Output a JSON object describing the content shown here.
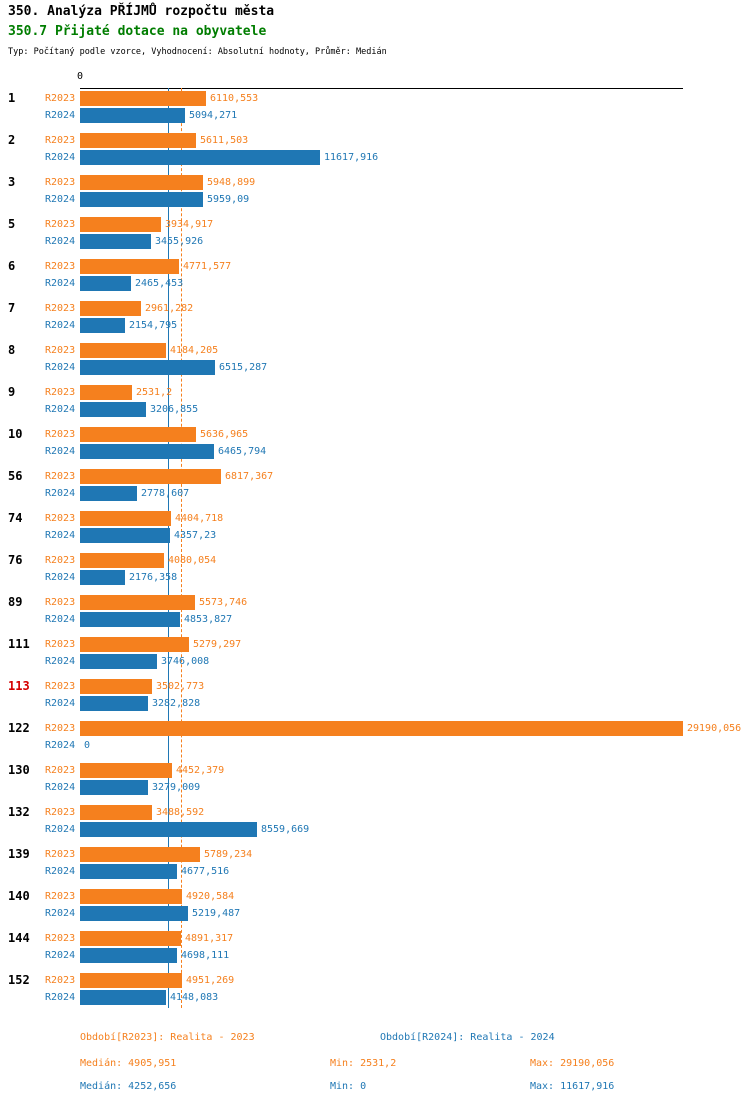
{
  "title": "350. Analýza PŘÍJMŮ rozpočtu města",
  "subtitle": "350.7 Přijaté dotace na obyvatele",
  "meta": "Typ: Počítaný podle vzorce, Vyhodnocení: Absolutní hodnoty, Průměr: Medián",
  "axis": {
    "zero_label": "0"
  },
  "colors": {
    "r2023": "#F5801E",
    "r2024": "#1F77B4",
    "highlight_row": "#D40000",
    "subtitle": "#007D00"
  },
  "chart_data": {
    "type": "bar",
    "orientation": "horizontal",
    "title": "350. Analýza PŘÍJMŮ rozpočtu města",
    "subtitle": "350.7 Přijaté dotace na obyvatele",
    "xlim": [
      0,
      29190.056
    ],
    "xticks": [
      "0"
    ],
    "grid": false,
    "legend_position": "bottom",
    "categories": [
      "1",
      "2",
      "3",
      "5",
      "6",
      "7",
      "8",
      "9",
      "10",
      "56",
      "74",
      "76",
      "89",
      "111",
      "113",
      "122",
      "130",
      "132",
      "139",
      "140",
      "144",
      "152"
    ],
    "highlighted_category": "113",
    "series": [
      {
        "name": "R2023",
        "color": "#F5801E",
        "values": [
          6110.553,
          5611.503,
          5948.899,
          3934.917,
          4771.577,
          2961.282,
          4184.205,
          2531.2,
          5636.965,
          6817.367,
          4404.718,
          4080.054,
          5573.746,
          5279.297,
          3502.773,
          29190.056,
          4452.379,
          3488.592,
          5789.234,
          4920.584,
          4891.317,
          4951.269
        ],
        "labels": [
          "6110,553",
          "5611,503",
          "5948,899",
          "3934,917",
          "4771,577",
          "2961,282",
          "4184,205",
          "2531,2",
          "5636,965",
          "6817,367",
          "4404,718",
          "4080,054",
          "5573,746",
          "5279,297",
          "3502,773",
          "29190,056",
          "4452,379",
          "3488,592",
          "5789,234",
          "4920,584",
          "4891,317",
          "4951,269"
        ]
      },
      {
        "name": "R2024",
        "color": "#1F77B4",
        "values": [
          5094.271,
          11617.916,
          5959.09,
          3455.926,
          2465.453,
          2154.795,
          6515.287,
          3206.855,
          6465.794,
          2778.607,
          4357.23,
          2176.358,
          4853.827,
          3746.008,
          3282.828,
          0,
          3279.009,
          8559.669,
          4677.516,
          5219.487,
          4698.111,
          4148.083
        ],
        "labels": [
          "5094,271",
          "11617,916",
          "5959,09",
          "3455,926",
          "2465,453",
          "2154,795",
          "6515,287",
          "3206,855",
          "6465,794",
          "2778,607",
          "4357,23",
          "2176,358",
          "4853,827",
          "3746,008",
          "3282,828",
          "0",
          "3279,009",
          "8559,669",
          "4677,516",
          "5219,487",
          "4698,111",
          "4148,083"
        ]
      }
    ],
    "median_lines": [
      {
        "series": "R2024",
        "value": 4252.656,
        "style": "solid",
        "color": "#1F77B4"
      },
      {
        "series": "R2023",
        "value": 4905.951,
        "style": "dashed",
        "color": "#F5801E"
      }
    ]
  },
  "footer": {
    "r2023_period": "Období[R2023]: Realita - 2023",
    "r2024_period": "Období[R2024]: Realita - 2024",
    "r2023_median": "Medián: 4905,951",
    "r2023_min": "Min: 2531,2",
    "r2023_max": "Max: 29190,056",
    "r2024_median": "Medián: 4252,656",
    "r2024_min": "Min: 0",
    "r2024_max": "Max: 11617,916"
  }
}
